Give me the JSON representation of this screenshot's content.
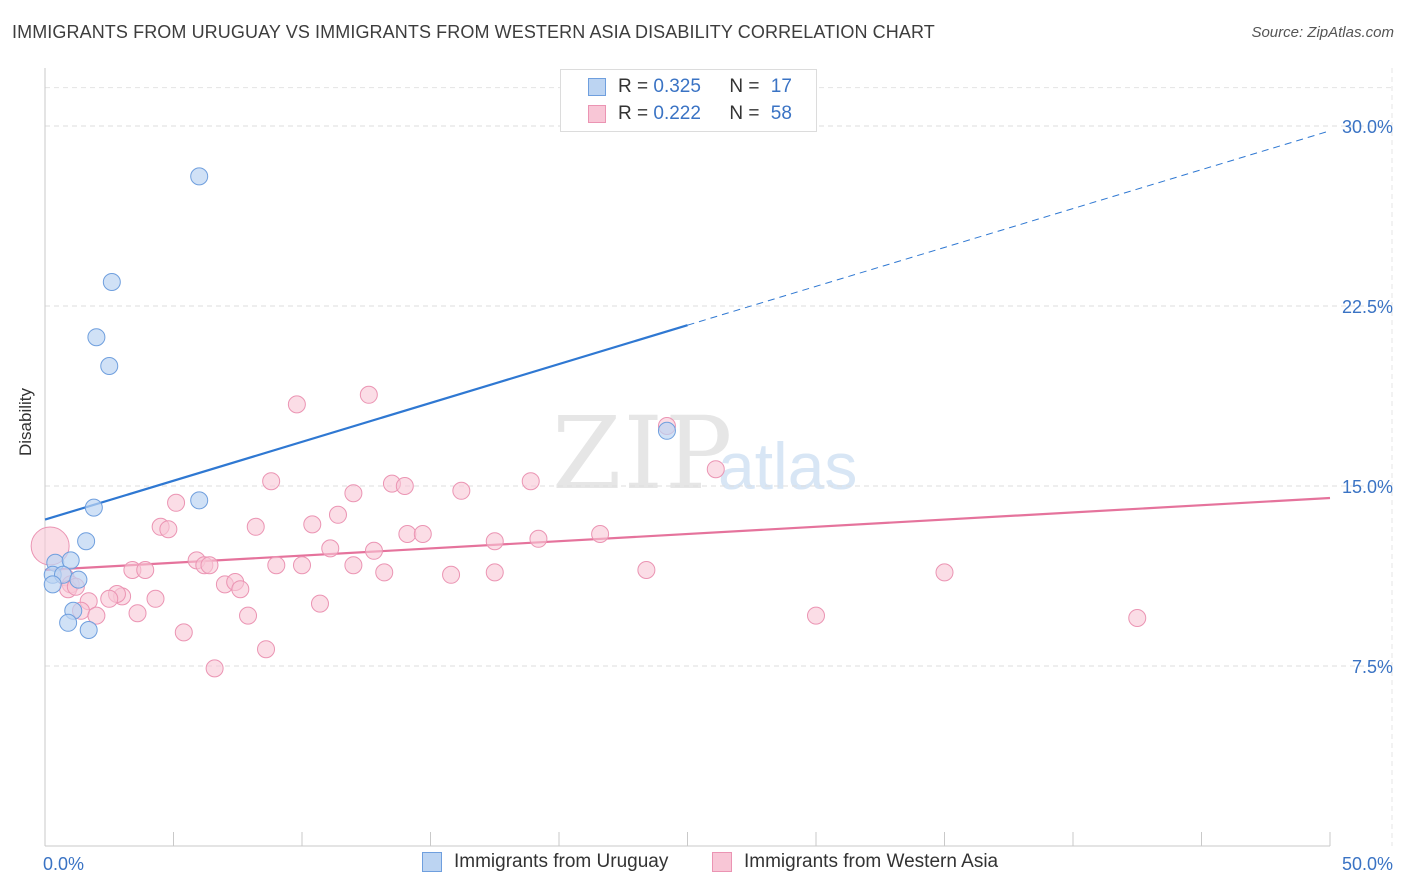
{
  "title": "IMMIGRANTS FROM URUGUAY VS IMMIGRANTS FROM WESTERN ASIA DISABILITY CORRELATION CHART",
  "source": "Source: ZipAtlas.com",
  "watermark": {
    "zip": "ZIP",
    "atlas": "atlas"
  },
  "legend": {
    "rows": [
      {
        "r_label": "R = ",
        "r_value": "0.325",
        "n_label": "N = ",
        "n_value": "17"
      },
      {
        "r_label": "R = ",
        "r_value": "0.222",
        "n_label": "N = ",
        "n_value": "58"
      }
    ]
  },
  "colors": {
    "blue_fill": "#bcd4f2",
    "blue_stroke": "#6f9fde",
    "blue_line": "#2f78d2",
    "pink_fill": "#f8c6d6",
    "pink_stroke": "#eb94b3",
    "pink_line": "#e5739c",
    "tick_label": "#3a73c4"
  },
  "chart_data": {
    "type": "scatter",
    "title": "IMMIGRANTS FROM URUGUAY VS IMMIGRANTS FROM WESTERN ASIA DISABILITY CORRELATION CHART",
    "xlabel": "",
    "ylabel": "Disability",
    "xlim": [
      0,
      50
    ],
    "ylim": [
      0,
      32
    ],
    "x_tick_labels": [
      "0.0%",
      "50.0%"
    ],
    "y_ticks": [
      7.5,
      15.0,
      22.5,
      30.0
    ],
    "y_tick_labels": [
      "7.5%",
      "15.0%",
      "22.5%",
      "30.0%"
    ],
    "legend_position": "top-center",
    "series": [
      {
        "name": "Immigrants from Uruguay",
        "R": 0.325,
        "N": 17,
        "trend": {
          "x0": 0,
          "y0": 13.6,
          "x1": 25,
          "y1": 21.7,
          "dash_to_x": 50,
          "dash_to_y": 29.8
        },
        "points": [
          {
            "x": 6.0,
            "y": 27.9
          },
          {
            "x": 2.6,
            "y": 23.5
          },
          {
            "x": 2.0,
            "y": 21.2
          },
          {
            "x": 2.5,
            "y": 20.0
          },
          {
            "x": 24.2,
            "y": 17.3
          },
          {
            "x": 6.0,
            "y": 14.4
          },
          {
            "x": 1.9,
            "y": 14.1
          },
          {
            "x": 1.6,
            "y": 12.7
          },
          {
            "x": 0.4,
            "y": 11.8
          },
          {
            "x": 1.0,
            "y": 11.9
          },
          {
            "x": 0.3,
            "y": 11.3
          },
          {
            "x": 0.7,
            "y": 11.3
          },
          {
            "x": 1.3,
            "y": 11.1
          },
          {
            "x": 0.3,
            "y": 10.9
          },
          {
            "x": 1.1,
            "y": 9.8
          },
          {
            "x": 0.9,
            "y": 9.3
          },
          {
            "x": 1.7,
            "y": 9.0
          }
        ]
      },
      {
        "name": "Immigrants from Western Asia",
        "R": 0.222,
        "N": 58,
        "trend": {
          "x0": 0,
          "y0": 11.5,
          "x1": 50,
          "y1": 14.5
        },
        "points": [
          {
            "x": 0.2,
            "y": 12.5,
            "big": true
          },
          {
            "x": 12.6,
            "y": 18.8
          },
          {
            "x": 9.8,
            "y": 18.4
          },
          {
            "x": 24.2,
            "y": 17.5
          },
          {
            "x": 26.1,
            "y": 15.7
          },
          {
            "x": 8.8,
            "y": 15.2
          },
          {
            "x": 13.5,
            "y": 15.1
          },
          {
            "x": 14.0,
            "y": 15.0
          },
          {
            "x": 18.9,
            "y": 15.2
          },
          {
            "x": 12.0,
            "y": 14.7
          },
          {
            "x": 16.2,
            "y": 14.8
          },
          {
            "x": 5.1,
            "y": 14.3
          },
          {
            "x": 11.4,
            "y": 13.8
          },
          {
            "x": 4.5,
            "y": 13.3
          },
          {
            "x": 4.8,
            "y": 13.2
          },
          {
            "x": 8.2,
            "y": 13.3
          },
          {
            "x": 10.4,
            "y": 13.4
          },
          {
            "x": 14.1,
            "y": 13.0
          },
          {
            "x": 14.7,
            "y": 13.0
          },
          {
            "x": 21.6,
            "y": 13.0
          },
          {
            "x": 17.5,
            "y": 12.7
          },
          {
            "x": 19.2,
            "y": 12.8
          },
          {
            "x": 11.1,
            "y": 12.4
          },
          {
            "x": 12.8,
            "y": 12.3
          },
          {
            "x": 5.9,
            "y": 11.9
          },
          {
            "x": 6.2,
            "y": 11.7
          },
          {
            "x": 6.4,
            "y": 11.7
          },
          {
            "x": 9.0,
            "y": 11.7
          },
          {
            "x": 10.0,
            "y": 11.7
          },
          {
            "x": 12.0,
            "y": 11.7
          },
          {
            "x": 3.4,
            "y": 11.5
          },
          {
            "x": 3.9,
            "y": 11.5
          },
          {
            "x": 0.8,
            "y": 11.2
          },
          {
            "x": 13.2,
            "y": 11.4
          },
          {
            "x": 15.8,
            "y": 11.3
          },
          {
            "x": 17.5,
            "y": 11.4
          },
          {
            "x": 23.4,
            "y": 11.5
          },
          {
            "x": 35.0,
            "y": 11.4
          },
          {
            "x": 1.0,
            "y": 10.9
          },
          {
            "x": 7.0,
            "y": 10.9
          },
          {
            "x": 7.4,
            "y": 11.0
          },
          {
            "x": 7.6,
            "y": 10.7
          },
          {
            "x": 0.9,
            "y": 10.7
          },
          {
            "x": 1.2,
            "y": 10.8
          },
          {
            "x": 3.0,
            "y": 10.4
          },
          {
            "x": 2.8,
            "y": 10.5
          },
          {
            "x": 4.3,
            "y": 10.3
          },
          {
            "x": 1.7,
            "y": 10.2
          },
          {
            "x": 2.5,
            "y": 10.3
          },
          {
            "x": 10.7,
            "y": 10.1
          },
          {
            "x": 1.4,
            "y": 9.8
          },
          {
            "x": 2.0,
            "y": 9.6
          },
          {
            "x": 3.6,
            "y": 9.7
          },
          {
            "x": 7.9,
            "y": 9.6
          },
          {
            "x": 30.0,
            "y": 9.6
          },
          {
            "x": 42.5,
            "y": 9.5
          },
          {
            "x": 5.4,
            "y": 8.9
          },
          {
            "x": 8.6,
            "y": 8.2
          },
          {
            "x": 6.6,
            "y": 7.4
          }
        ]
      }
    ]
  }
}
